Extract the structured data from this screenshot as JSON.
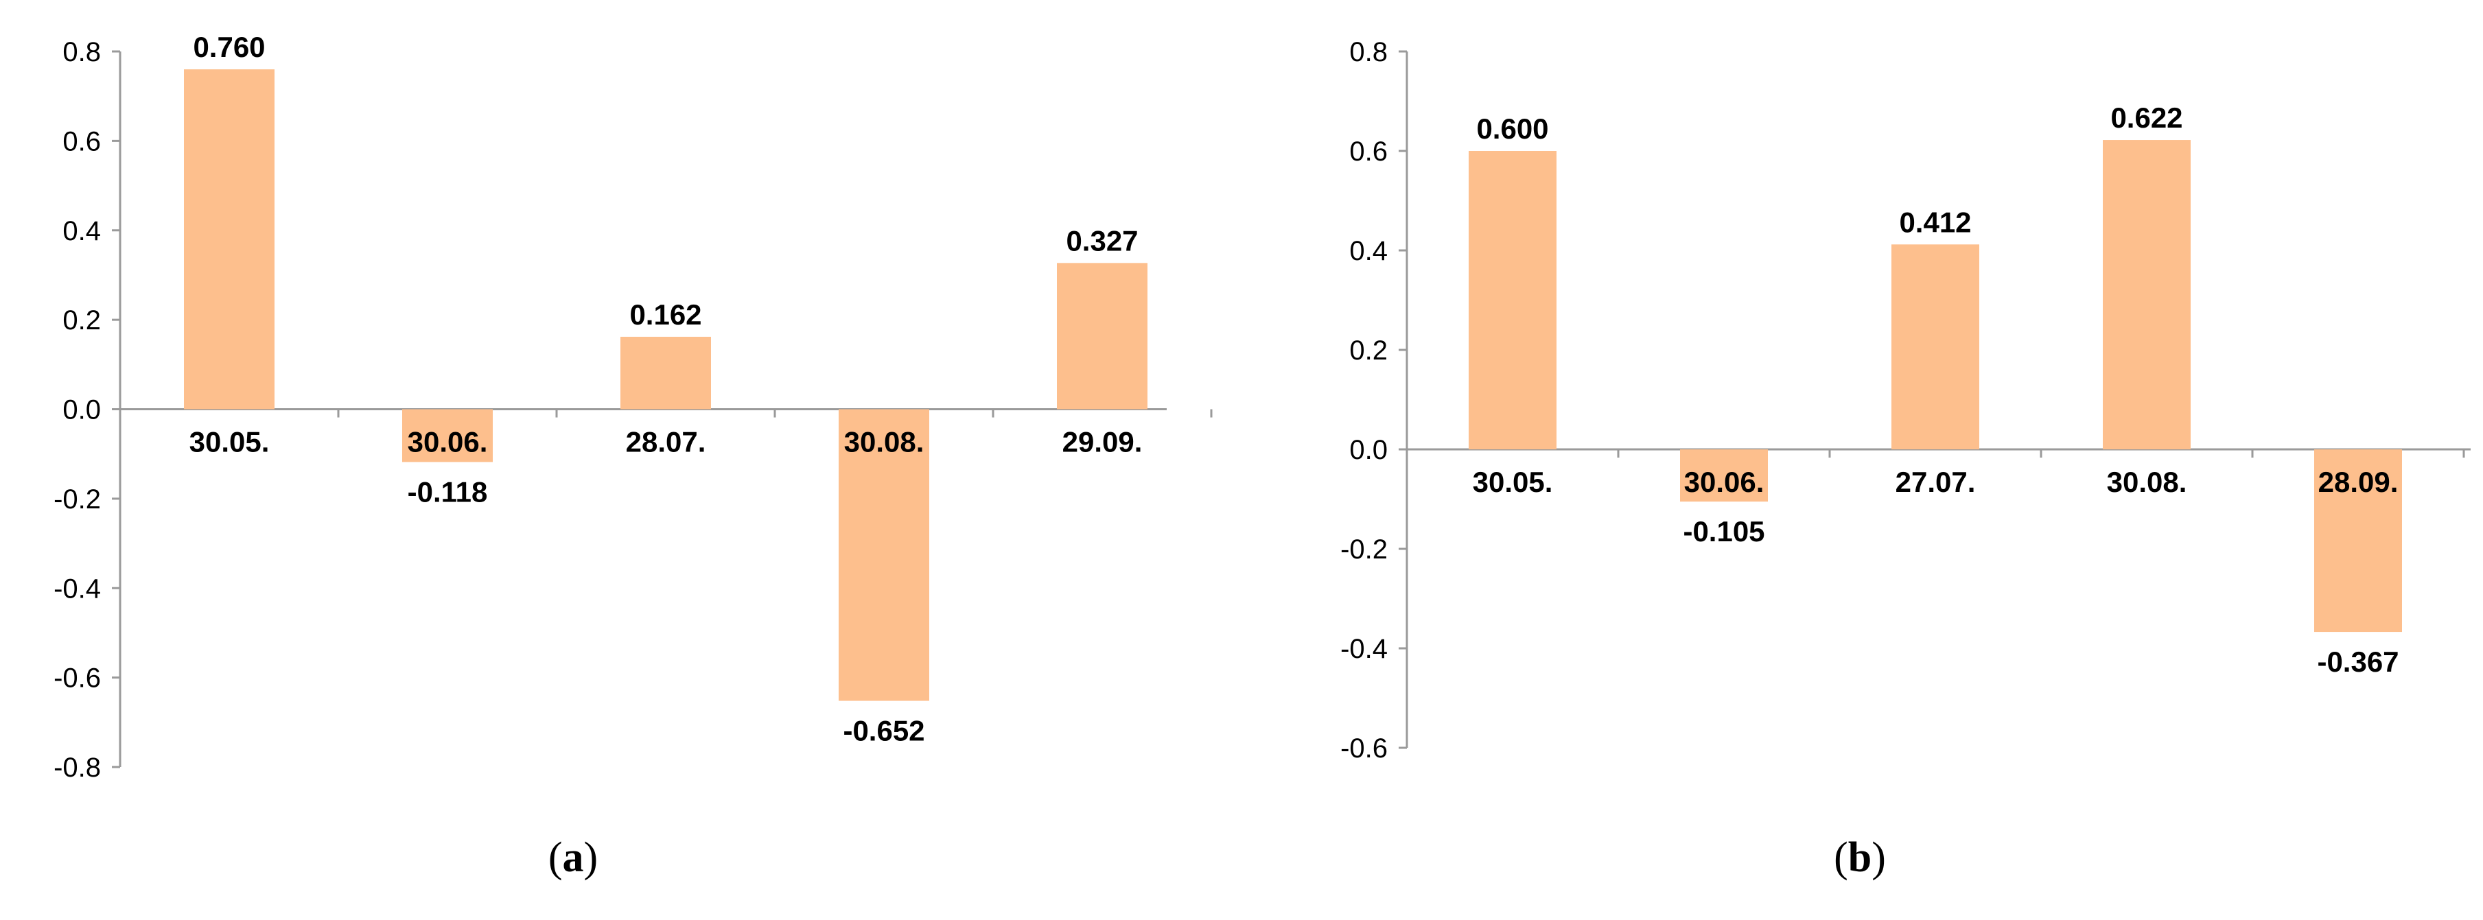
{
  "colors": {
    "bar": "#FDBF8D",
    "axis": "#9a9a9a",
    "text": "#000000"
  },
  "chart_data": [
    {
      "type": "bar",
      "panel_label": {
        "open": "(",
        "letter": "a",
        "close": ")"
      },
      "categories": [
        "30.05.",
        "30.06.",
        "28.07.",
        "30.08.",
        "29.09."
      ],
      "values": [
        0.76,
        -0.118,
        0.162,
        -0.652,
        0.327
      ],
      "data_labels": [
        "0.760",
        "-0.118",
        "0.162",
        "-0.652",
        "0.327"
      ],
      "yticks": [
        "0.8",
        "0.6",
        "0.4",
        "0.2",
        "0.0",
        "-0.2",
        "-0.4",
        "-0.6",
        "-0.8"
      ],
      "ylim": [
        -0.8,
        0.8
      ],
      "grid": false,
      "legend": "none"
    },
    {
      "type": "bar",
      "panel_label": {
        "open": "(",
        "letter": "b",
        "close": ")"
      },
      "categories": [
        "30.05.",
        "30.06.",
        "27.07.",
        "30.08.",
        "28.09."
      ],
      "values": [
        0.6,
        -0.105,
        0.412,
        0.622,
        -0.367
      ],
      "data_labels": [
        "0.600",
        "-0.105",
        "0.412",
        "0.622",
        "-0.367"
      ],
      "yticks": [
        "0.8",
        "0.6",
        "0.4",
        "0.2",
        "0.0",
        "-0.2",
        "-0.4",
        "-0.6"
      ],
      "ylim": [
        -0.6,
        0.8
      ],
      "grid": false,
      "legend": "none"
    }
  ]
}
